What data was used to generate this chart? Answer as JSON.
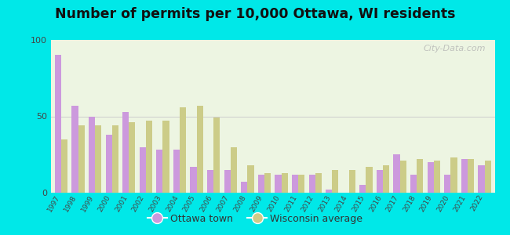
{
  "title": "Number of permits per 10,000 Ottawa, WI residents",
  "years": [
    1997,
    1998,
    1999,
    2000,
    2001,
    2002,
    2003,
    2004,
    2005,
    2006,
    2007,
    2008,
    2009,
    2010,
    2011,
    2012,
    2013,
    2014,
    2015,
    2016,
    2017,
    2018,
    2019,
    2020,
    2021,
    2022
  ],
  "ottawa": [
    90,
    57,
    50,
    38,
    53,
    30,
    28,
    28,
    17,
    15,
    15,
    7,
    12,
    12,
    12,
    12,
    2,
    0,
    5,
    15,
    25,
    12,
    20,
    12,
    22,
    18
  ],
  "wisconsin": [
    35,
    44,
    44,
    44,
    46,
    47,
    47,
    56,
    57,
    49,
    30,
    18,
    13,
    13,
    12,
    13,
    15,
    15,
    17,
    18,
    21,
    22,
    21,
    23,
    22,
    21
  ],
  "ottawa_color": "#cc99dd",
  "wisconsin_color": "#cccc88",
  "bg_color_outer": "#00e8e8",
  "bg_color_inner": "#edf5e2",
  "ylim": [
    0,
    100
  ],
  "yticks": [
    0,
    50,
    100
  ],
  "bar_width": 0.38,
  "title_fontsize": 12.5,
  "legend_ottawa": "Ottawa town",
  "legend_wisconsin": "Wisconsin average",
  "watermark": "City-Data.com"
}
